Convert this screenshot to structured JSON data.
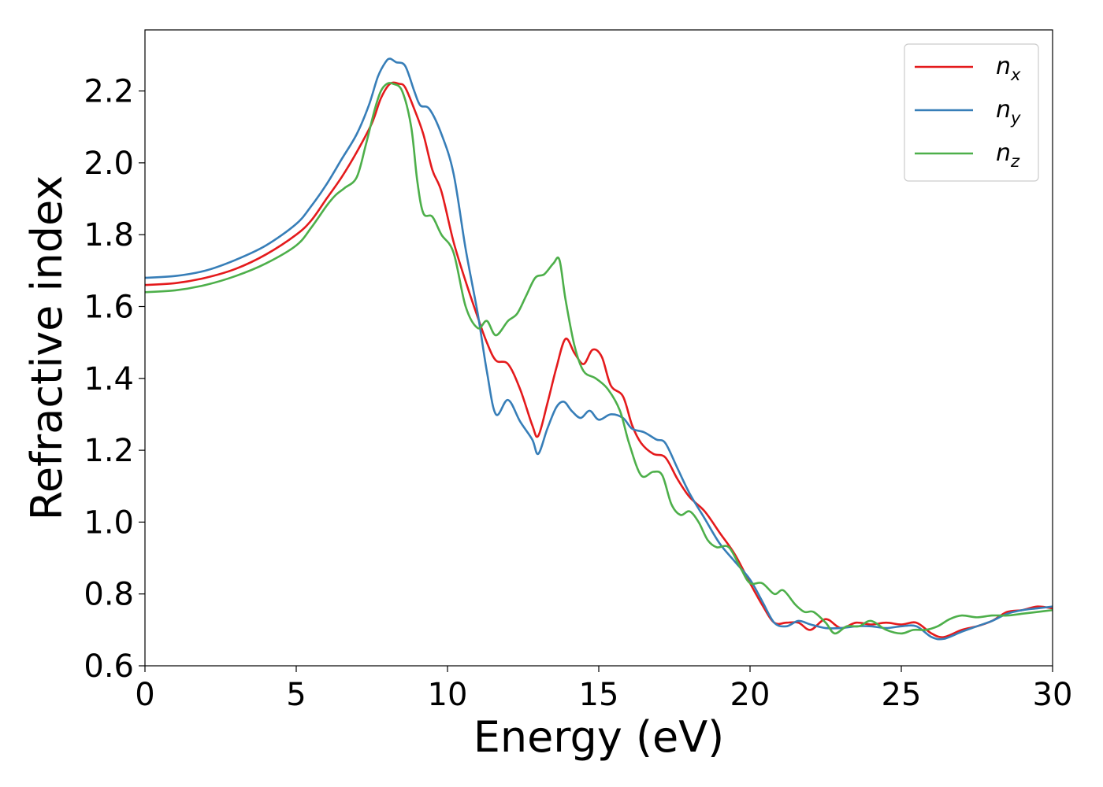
{
  "chart_data": {
    "type": "line",
    "xlabel": "Energy (eV)",
    "ylabel": "Refractive index",
    "xlim": [
      0,
      30
    ],
    "ylim": [
      0.6,
      2.37
    ],
    "xticks": [
      0,
      5,
      10,
      15,
      20,
      25,
      30
    ],
    "xtick_labels": [
      "0",
      "5",
      "10",
      "15",
      "20",
      "25",
      "30"
    ],
    "yticks": [
      0.6,
      0.8,
      1.0,
      1.2,
      1.4,
      1.6,
      1.8,
      2.0,
      2.2
    ],
    "ytick_labels": [
      "0.6",
      "0.8",
      "1.0",
      "1.2",
      "1.4",
      "1.6",
      "1.8",
      "2.0",
      "2.2"
    ],
    "grid": false,
    "legend_position": "top-right",
    "series": [
      {
        "name": "n_x",
        "label_base": "n",
        "label_sub": "x",
        "color": "#e41a1c",
        "x": [
          0,
          1,
          2,
          3,
          4,
          5,
          5.5,
          6,
          6.5,
          7,
          7.5,
          7.8,
          8.1,
          8.4,
          8.6,
          8.9,
          9.2,
          9.5,
          9.8,
          10.2,
          10.6,
          11.0,
          11.3,
          11.6,
          12.0,
          12.4,
          12.8,
          13.0,
          13.3,
          13.6,
          13.9,
          14.2,
          14.5,
          14.8,
          15.1,
          15.4,
          15.8,
          16.1,
          16.4,
          16.8,
          17.2,
          17.6,
          18.0,
          18.5,
          19.0,
          19.5,
          20.0,
          20.4,
          20.8,
          21.2,
          21.6,
          22.0,
          22.5,
          23.0,
          23.5,
          24.0,
          24.5,
          25.0,
          25.5,
          26.0,
          26.4,
          27.0,
          27.5,
          28.0,
          28.5,
          29.0,
          29.5,
          30.0
        ],
        "y": [
          1.66,
          1.665,
          1.68,
          1.705,
          1.745,
          1.8,
          1.84,
          1.9,
          1.96,
          2.03,
          2.11,
          2.18,
          2.22,
          2.22,
          2.21,
          2.15,
          2.08,
          1.98,
          1.92,
          1.78,
          1.67,
          1.57,
          1.5,
          1.45,
          1.44,
          1.37,
          1.27,
          1.24,
          1.33,
          1.43,
          1.51,
          1.47,
          1.44,
          1.48,
          1.46,
          1.38,
          1.35,
          1.27,
          1.22,
          1.19,
          1.18,
          1.12,
          1.07,
          1.03,
          0.97,
          0.91,
          0.83,
          0.77,
          0.72,
          0.72,
          0.72,
          0.7,
          0.73,
          0.705,
          0.72,
          0.715,
          0.72,
          0.715,
          0.72,
          0.69,
          0.68,
          0.7,
          0.71,
          0.725,
          0.75,
          0.755,
          0.765,
          0.76
        ]
      },
      {
        "name": "n_y",
        "label_base": "n",
        "label_sub": "y",
        "color": "#377eb8",
        "x": [
          0,
          1,
          2,
          3,
          4,
          5,
          5.5,
          6,
          6.5,
          7,
          7.4,
          7.7,
          7.95,
          8.1,
          8.3,
          8.6,
          8.9,
          9.1,
          9.4,
          9.8,
          10.2,
          10.6,
          11.0,
          11.3,
          11.6,
          12.0,
          12.4,
          12.8,
          13.0,
          13.3,
          13.6,
          13.85,
          14.1,
          14.4,
          14.7,
          15.0,
          15.4,
          15.8,
          16.1,
          16.5,
          16.9,
          17.2,
          17.6,
          18.0,
          18.5,
          19.0,
          19.5,
          20.0,
          20.4,
          20.8,
          21.2,
          21.6,
          22.0,
          22.5,
          23.0,
          23.5,
          24.0,
          24.5,
          25.0,
          25.5,
          26.0,
          26.4,
          27.0,
          27.5,
          28.0,
          28.5,
          29.0,
          29.5,
          30.0
        ],
        "y": [
          1.68,
          1.685,
          1.7,
          1.73,
          1.77,
          1.83,
          1.88,
          1.94,
          2.01,
          2.08,
          2.16,
          2.24,
          2.28,
          2.29,
          2.28,
          2.27,
          2.2,
          2.16,
          2.15,
          2.08,
          1.97,
          1.76,
          1.58,
          1.42,
          1.3,
          1.34,
          1.28,
          1.23,
          1.19,
          1.26,
          1.32,
          1.335,
          1.31,
          1.29,
          1.31,
          1.285,
          1.3,
          1.29,
          1.26,
          1.25,
          1.23,
          1.22,
          1.15,
          1.08,
          1.01,
          0.94,
          0.89,
          0.84,
          0.78,
          0.72,
          0.71,
          0.725,
          0.715,
          0.705,
          0.705,
          0.71,
          0.71,
          0.705,
          0.71,
          0.71,
          0.68,
          0.675,
          0.695,
          0.71,
          0.725,
          0.745,
          0.755,
          0.76,
          0.765
        ]
      },
      {
        "name": "n_z",
        "label_base": "n",
        "label_sub": "z",
        "color": "#4daf4a",
        "x": [
          0,
          1,
          2,
          3,
          4,
          5,
          5.5,
          6,
          6.3,
          6.6,
          7.0,
          7.3,
          7.6,
          7.8,
          8.0,
          8.2,
          8.5,
          8.8,
          9.0,
          9.2,
          9.5,
          9.8,
          10.2,
          10.6,
          11.0,
          11.3,
          11.6,
          12.0,
          12.3,
          12.6,
          12.9,
          13.2,
          13.5,
          13.7,
          13.9,
          14.2,
          14.5,
          14.9,
          15.3,
          15.7,
          16.0,
          16.4,
          16.8,
          17.1,
          17.4,
          17.7,
          18.0,
          18.3,
          18.6,
          18.9,
          19.3,
          19.7,
          20.0,
          20.4,
          20.8,
          21.1,
          21.5,
          21.8,
          22.1,
          22.5,
          22.8,
          23.2,
          23.6,
          24.0,
          24.5,
          25.0,
          25.4,
          25.8,
          26.2,
          26.6,
          27.0,
          27.5,
          28.0,
          28.5,
          29.0,
          29.5,
          30.0
        ],
        "y": [
          1.64,
          1.645,
          1.66,
          1.685,
          1.72,
          1.77,
          1.82,
          1.88,
          1.91,
          1.93,
          1.96,
          2.05,
          2.15,
          2.2,
          2.22,
          2.22,
          2.2,
          2.1,
          1.95,
          1.86,
          1.85,
          1.8,
          1.75,
          1.6,
          1.54,
          1.56,
          1.52,
          1.56,
          1.58,
          1.63,
          1.68,
          1.69,
          1.72,
          1.73,
          1.62,
          1.49,
          1.42,
          1.4,
          1.37,
          1.31,
          1.22,
          1.13,
          1.14,
          1.13,
          1.05,
          1.02,
          1.03,
          1.0,
          0.95,
          0.93,
          0.93,
          0.87,
          0.83,
          0.83,
          0.8,
          0.81,
          0.77,
          0.75,
          0.75,
          0.72,
          0.69,
          0.71,
          0.71,
          0.725,
          0.7,
          0.69,
          0.7,
          0.7,
          0.71,
          0.73,
          0.74,
          0.735,
          0.74,
          0.74,
          0.745,
          0.75,
          0.755
        ]
      }
    ]
  }
}
